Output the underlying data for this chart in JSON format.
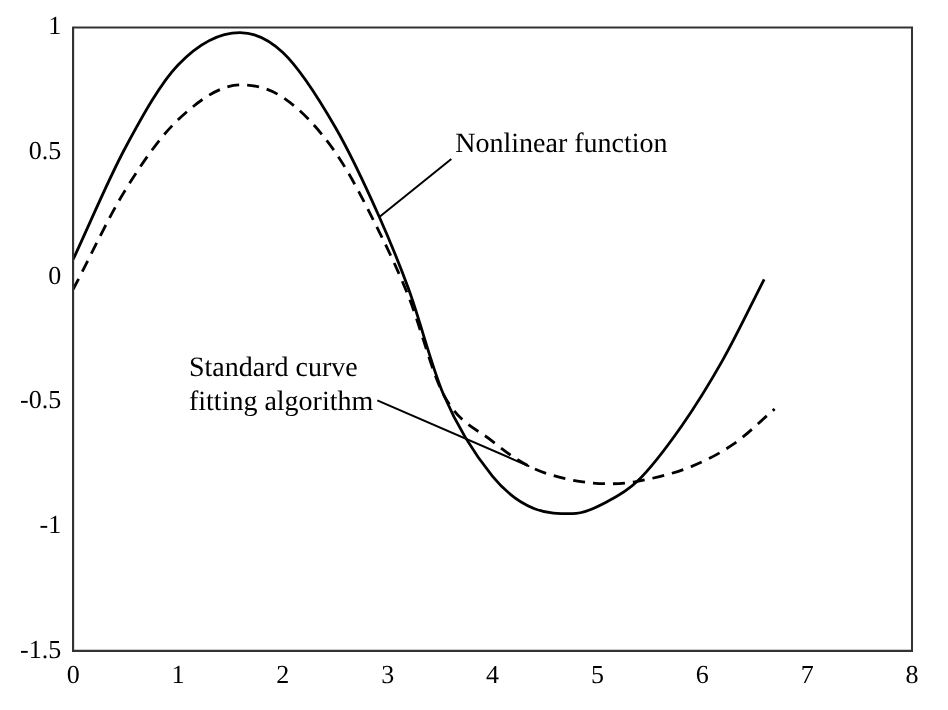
{
  "chart_data": {
    "type": "line",
    "xlim": [
      0,
      8
    ],
    "xticks": [
      0,
      1,
      2,
      3,
      4,
      5,
      6,
      7,
      8
    ],
    "ylim": [
      -1.5,
      1
    ],
    "yticks": [
      -1.5,
      -1,
      -0.5,
      0,
      0.5,
      1
    ],
    "grid": false,
    "legend": false,
    "marker": "none",
    "series": [
      {
        "color": "#000000",
        "line_style": "solid",
        "x": [
          0,
          0.5,
          1,
          1.59,
          2,
          2.5,
          2.92,
          3.2,
          3.53,
          4,
          4.4,
          4.76,
          5.1,
          5.38,
          5.8,
          6.2,
          6.59
        ],
        "values": [
          0.07,
          0.52,
          0.85,
          0.98,
          0.9,
          0.6,
          0.24,
          -0.05,
          -0.47,
          -0.8,
          -0.93,
          -0.95,
          -0.9,
          -0.82,
          -0.6,
          -0.33,
          -0.01
        ]
      },
      {
        "color": "#000000",
        "line_style": "dashed",
        "x": [
          0,
          0.5,
          1,
          1.6,
          2,
          2.5,
          2.92,
          3.2,
          3.53,
          4,
          4.35,
          4.7,
          5.12,
          5.38,
          5.9,
          6.3,
          6.69
        ],
        "values": [
          -0.05,
          0.35,
          0.63,
          0.77,
          0.72,
          0.5,
          0.18,
          -0.08,
          -0.47,
          -0.66,
          -0.76,
          -0.81,
          -0.83,
          -0.82,
          -0.76,
          -0.67,
          -0.53
        ]
      }
    ],
    "annotations": [
      {
        "text": "Nonlinear function",
        "x": 2.92,
        "y": 0.24
      },
      {
        "text": "Standard curve fitting algorithm",
        "x": 4.35,
        "y": -0.76
      }
    ]
  }
}
